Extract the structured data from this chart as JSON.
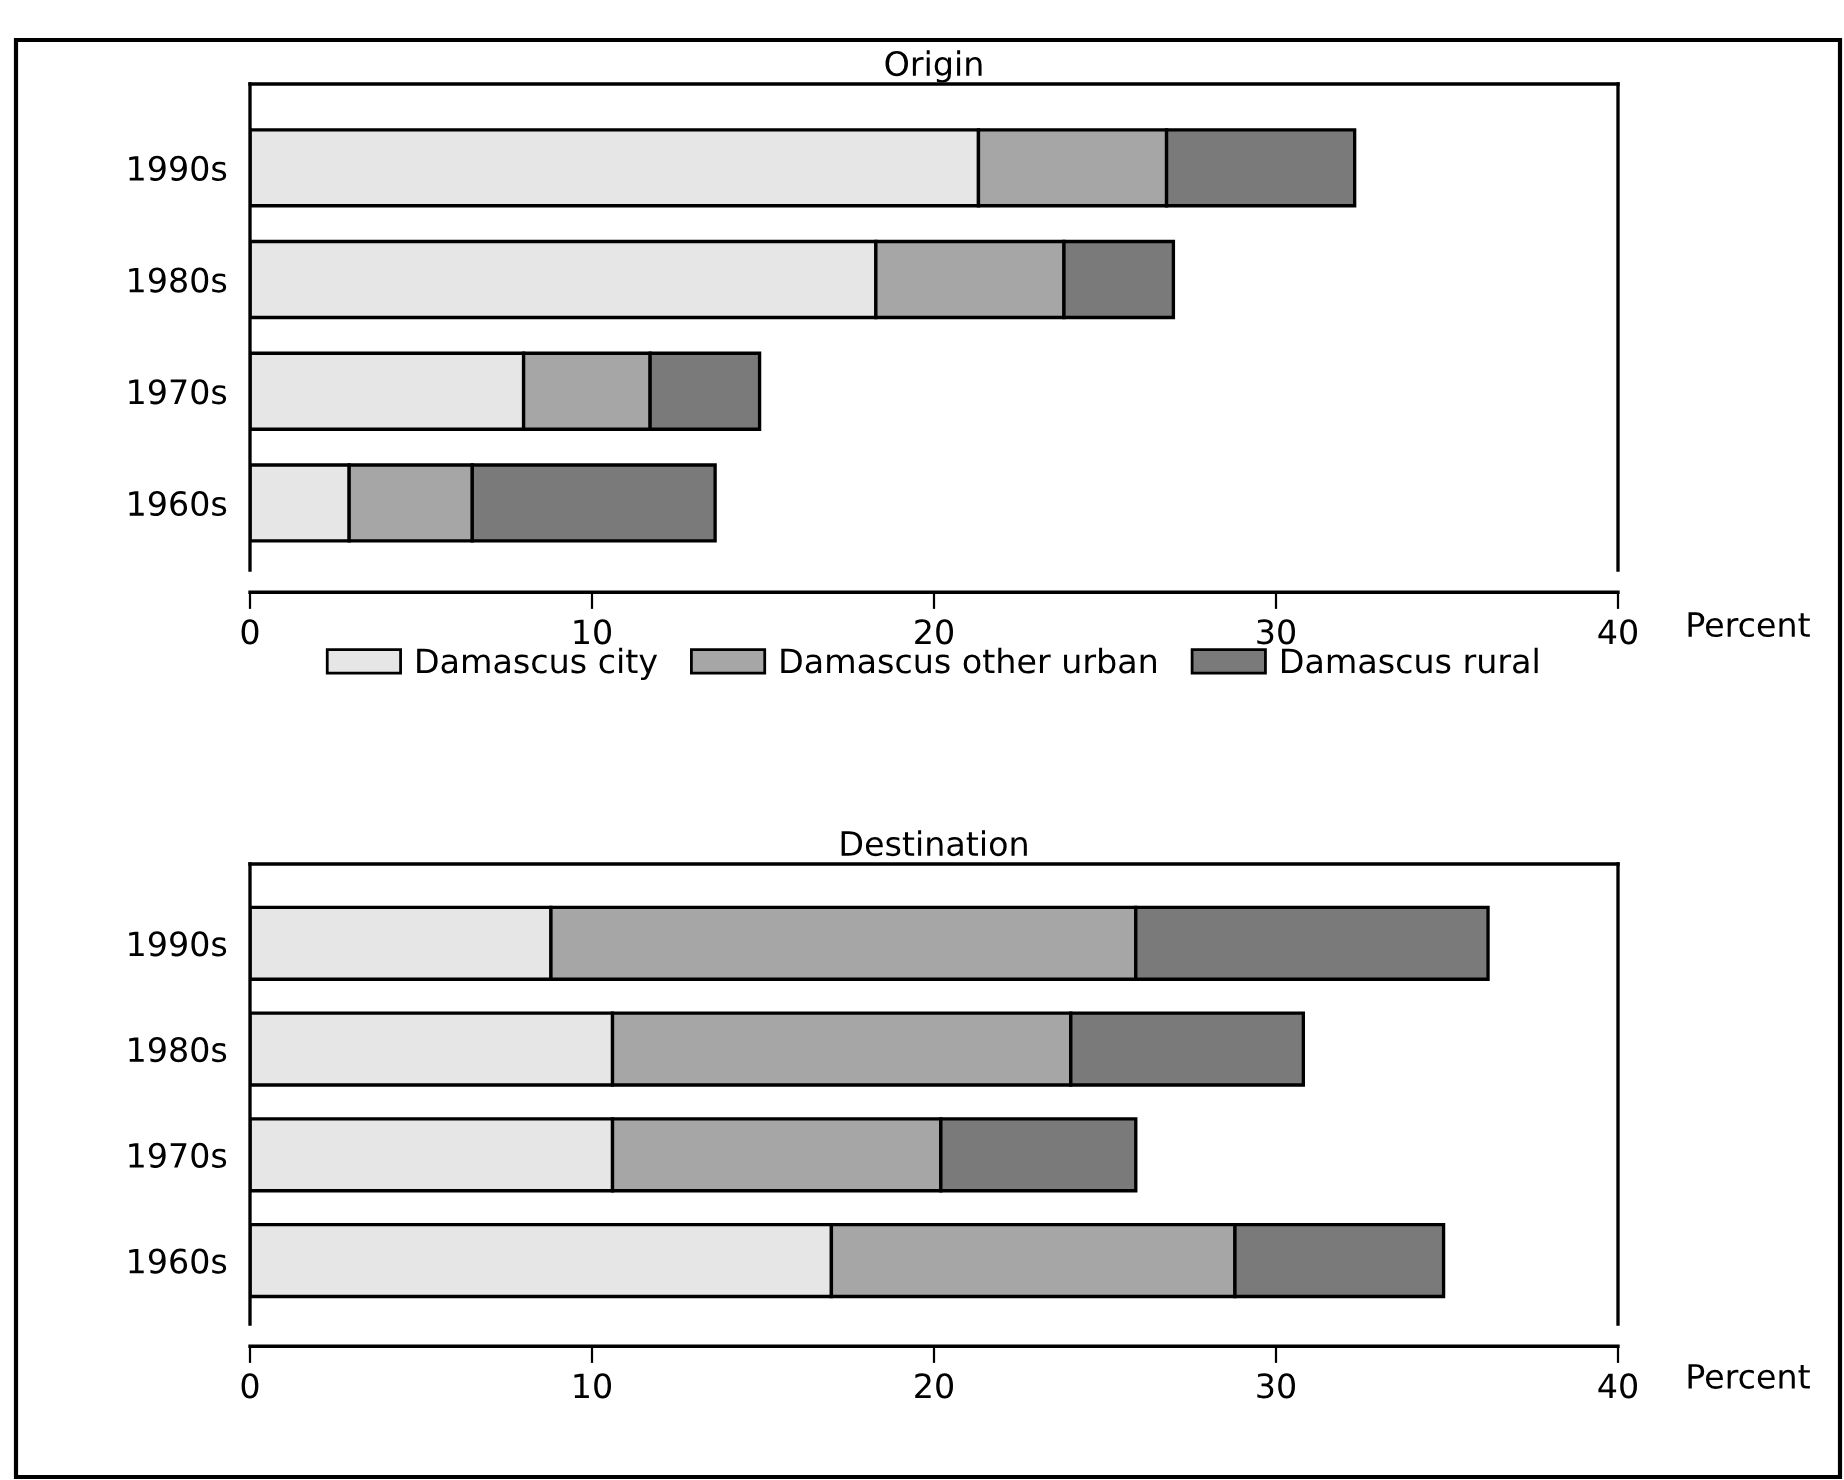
{
  "chart_data": [
    {
      "type": "bar",
      "orientation": "horizontal",
      "stacked": true,
      "title": "Origin",
      "xlabel": "Percent",
      "categories": [
        "1990s",
        "1980s",
        "1970s",
        "1960s"
      ],
      "xlim": [
        0,
        40
      ],
      "xticks": [
        0,
        10,
        20,
        30,
        40
      ],
      "grid": false,
      "legend": "bottom",
      "series": [
        {
          "name": "Damascus city",
          "color": "#e6e6e6",
          "values": [
            21.3,
            18.3,
            8.0,
            2.9
          ]
        },
        {
          "name": "Damascus other urban",
          "color": "#a6a6a6",
          "values": [
            5.5,
            5.5,
            3.7,
            3.6
          ]
        },
        {
          "name": "Damascus rural",
          "color": "#7a7a7a",
          "values": [
            5.5,
            3.2,
            3.2,
            7.1
          ]
        }
      ]
    },
    {
      "type": "bar",
      "orientation": "horizontal",
      "stacked": true,
      "title": "Destination",
      "xlabel": "Percent",
      "categories": [
        "1990s",
        "1980s",
        "1970s",
        "1960s"
      ],
      "xlim": [
        0,
        40
      ],
      "xticks": [
        0,
        10,
        20,
        30,
        40
      ],
      "grid": false,
      "series": [
        {
          "color": "#e6e6e6",
          "values": [
            8.8,
            10.6,
            10.6,
            17.0
          ]
        },
        {
          "color": "#a6a6a6",
          "values": [
            17.1,
            13.4,
            9.6,
            11.8
          ]
        },
        {
          "color": "#7a7a7a",
          "values": [
            10.3,
            6.8,
            5.7,
            6.1
          ]
        }
      ]
    }
  ]
}
